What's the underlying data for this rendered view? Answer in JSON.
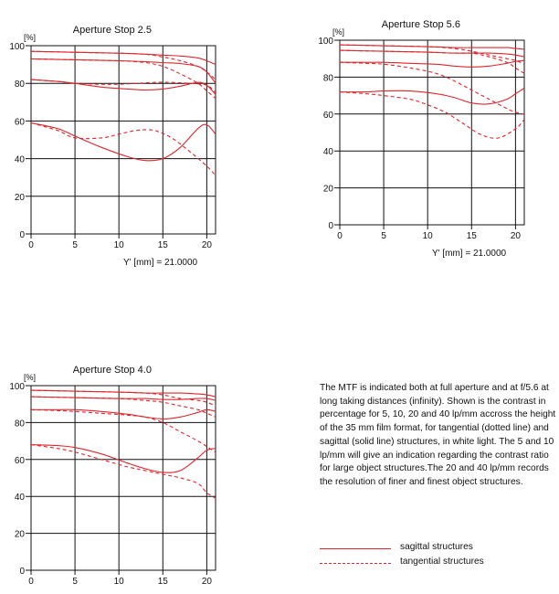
{
  "charts": [
    {
      "title": "Aperture Stop 2.5",
      "ylabel": "[%]",
      "xlabel_prefix": "Y' [mm] =",
      "xlabel_value": "21.0000",
      "xlim": [
        0,
        21
      ],
      "ylim": [
        0,
        100
      ],
      "xticks": [
        0,
        5,
        10,
        15,
        20
      ],
      "yticks": [
        0,
        20,
        40,
        60,
        80,
        100
      ],
      "sagittal": [
        {
          "x": [
            0,
            5,
            10,
            13,
            15,
            17,
            19,
            20,
            21
          ],
          "y": [
            97,
            96.5,
            96,
            95.5,
            95,
            94.5,
            93.5,
            92,
            90
          ]
        },
        {
          "x": [
            0,
            5,
            10,
            13,
            15,
            17,
            19,
            20,
            21
          ],
          "y": [
            93,
            92.5,
            92,
            91.5,
            91,
            90.5,
            89,
            86,
            80
          ]
        },
        {
          "x": [
            0,
            3,
            5,
            8,
            11,
            13,
            15,
            17,
            19,
            20,
            21
          ],
          "y": [
            82,
            81,
            80,
            78,
            77,
            76.5,
            77,
            78.5,
            80.5,
            79,
            74
          ]
        },
        {
          "x": [
            0,
            3,
            5,
            8,
            11,
            13,
            15,
            17,
            19,
            20,
            21
          ],
          "y": [
            59,
            56,
            52,
            46,
            41,
            39,
            40,
            46,
            56,
            58,
            53
          ]
        }
      ],
      "tangential": [
        {
          "x": [
            0,
            5,
            10,
            13,
            15,
            17,
            19,
            20,
            21
          ],
          "y": [
            97,
            96.5,
            96,
            95.5,
            94,
            92,
            89,
            86,
            82
          ]
        },
        {
          "x": [
            0,
            5,
            10,
            13,
            15,
            17,
            19,
            20,
            21
          ],
          "y": [
            93,
            92.5,
            92,
            91,
            89,
            85,
            80,
            76,
            72
          ]
        },
        {
          "x": [
            0,
            3,
            5,
            8,
            10,
            12,
            14,
            16,
            18,
            20,
            21
          ],
          "y": [
            82,
            81,
            80,
            79.5,
            79.5,
            80,
            80.5,
            80.5,
            80,
            79,
            75
          ]
        },
        {
          "x": [
            0,
            3,
            5,
            8,
            10,
            12,
            14,
            16,
            18,
            20,
            21
          ],
          "y": [
            59,
            55,
            51,
            51,
            53,
            55,
            55,
            51,
            44,
            36,
            31
          ]
        }
      ]
    },
    {
      "title": "Aperture Stop 5.6",
      "ylabel": "[%]",
      "xlabel_prefix": "Y' [mm] =",
      "xlabel_value": "21.0000",
      "xlim": [
        0,
        21
      ],
      "ylim": [
        0,
        100
      ],
      "xticks": [
        0,
        5,
        10,
        15,
        20
      ],
      "yticks": [
        0,
        20,
        40,
        60,
        80,
        100
      ],
      "sagittal": [
        {
          "x": [
            0,
            5,
            10,
            13,
            15,
            17,
            19,
            20,
            21
          ],
          "y": [
            97.5,
            97,
            96.5,
            96,
            96,
            96,
            96,
            95.5,
            95
          ]
        },
        {
          "x": [
            0,
            5,
            10,
            13,
            15,
            17,
            19,
            20,
            21
          ],
          "y": [
            94.5,
            94,
            93.5,
            93,
            93,
            93,
            92.5,
            92,
            91
          ]
        },
        {
          "x": [
            0,
            3,
            5,
            8,
            11,
            13,
            15,
            17,
            19,
            20,
            21
          ],
          "y": [
            88,
            88,
            88,
            87.5,
            87,
            86,
            85.5,
            86,
            87.5,
            88.5,
            89
          ]
        },
        {
          "x": [
            0,
            3,
            5,
            8,
            11,
            13,
            15,
            17,
            19,
            20,
            21
          ],
          "y": [
            72,
            72,
            72.5,
            72.5,
            71,
            69,
            66,
            65.5,
            68,
            71,
            74
          ]
        }
      ],
      "tangential": [
        {
          "x": [
            0,
            5,
            10,
            13,
            15,
            17,
            19,
            20,
            21
          ],
          "y": [
            97.5,
            97,
            96.5,
            95.5,
            94,
            92,
            90,
            89,
            87
          ]
        },
        {
          "x": [
            0,
            5,
            10,
            13,
            15,
            17,
            19,
            20,
            21
          ],
          "y": [
            94.5,
            94,
            93.5,
            93,
            93,
            91,
            88,
            85,
            82
          ]
        },
        {
          "x": [
            0,
            3,
            5,
            8,
            11,
            13,
            15,
            17,
            19,
            20,
            21
          ],
          "y": [
            88,
            87.5,
            87,
            85,
            82,
            78,
            73,
            68,
            63,
            61,
            60
          ]
        },
        {
          "x": [
            0,
            3,
            5,
            8,
            10,
            12,
            14,
            16,
            18,
            20,
            21
          ],
          "y": [
            72,
            71,
            70,
            68,
            65,
            61,
            55,
            49,
            47,
            52,
            57
          ]
        }
      ]
    },
    {
      "title": "Aperture Stop 4.0",
      "ylabel": "[%]",
      "xlabel_prefix": "Y' [mm] =",
      "xlabel_value": "21.0000",
      "xlim": [
        0,
        21
      ],
      "ylim": [
        0,
        100
      ],
      "xticks": [
        0,
        5,
        10,
        15,
        20
      ],
      "yticks": [
        0,
        20,
        40,
        60,
        80,
        100
      ],
      "sagittal": [
        {
          "x": [
            0,
            5,
            10,
            13,
            15,
            17,
            19,
            20,
            21
          ],
          "y": [
            97.5,
            97,
            96.5,
            96,
            96,
            96,
            95.5,
            95,
            94
          ]
        },
        {
          "x": [
            0,
            5,
            10,
            13,
            15,
            17,
            19,
            20,
            21
          ],
          "y": [
            94,
            93.5,
            93,
            93,
            92.5,
            92.5,
            93,
            93,
            92
          ]
        },
        {
          "x": [
            0,
            3,
            5,
            8,
            11,
            13,
            15,
            17,
            19,
            20,
            21
          ],
          "y": [
            87,
            87,
            87,
            86,
            84.5,
            83,
            82,
            83,
            85.5,
            87,
            86
          ]
        },
        {
          "x": [
            0,
            3,
            5,
            8,
            11,
            13,
            15,
            17,
            19,
            20,
            21
          ],
          "y": [
            68,
            67.5,
            66.5,
            63,
            58,
            55,
            53,
            54,
            61,
            65,
            66
          ]
        }
      ],
      "tangential": [
        {
          "x": [
            0,
            5,
            10,
            13,
            15,
            17,
            19,
            20,
            21
          ],
          "y": [
            97.5,
            97,
            96.5,
            96,
            95,
            93,
            92,
            91,
            89
          ]
        },
        {
          "x": [
            0,
            5,
            10,
            13,
            15,
            17,
            19,
            20,
            21
          ],
          "y": [
            94,
            93.5,
            93,
            92,
            91,
            89,
            87,
            85,
            83
          ]
        },
        {
          "x": [
            0,
            3,
            5,
            8,
            11,
            13,
            15,
            17,
            19,
            20,
            21
          ],
          "y": [
            87,
            86.5,
            86,
            85,
            84,
            83,
            80,
            75,
            70,
            67,
            64
          ]
        },
        {
          "x": [
            0,
            3,
            5,
            8,
            11,
            13,
            15,
            17,
            19,
            20,
            21
          ],
          "y": [
            68,
            66,
            64,
            60,
            56,
            54,
            52,
            50,
            47,
            42,
            39
          ]
        }
      ]
    }
  ],
  "description": "The MTF is indicated both at full aperture and at f/5.6 at long taking distances (infinity). Shown is the contrast in percentage for 5, 10, 20 and 40 lp/mm accross the height of the 35 mm film format, for tangential (dotted line) and sagittal (solid line) structures, in white light. The 5 and 10 lp/mm will give an indication regarding the contrast ratio for large object structures.The 20 and 40 lp/mm records the resolution of finer and finest object structures.",
  "legend": {
    "sagittal": "sagittal structures",
    "tangential": "tangential structures"
  },
  "colors": {
    "curve": "#e0262d",
    "axis": "#111111"
  }
}
